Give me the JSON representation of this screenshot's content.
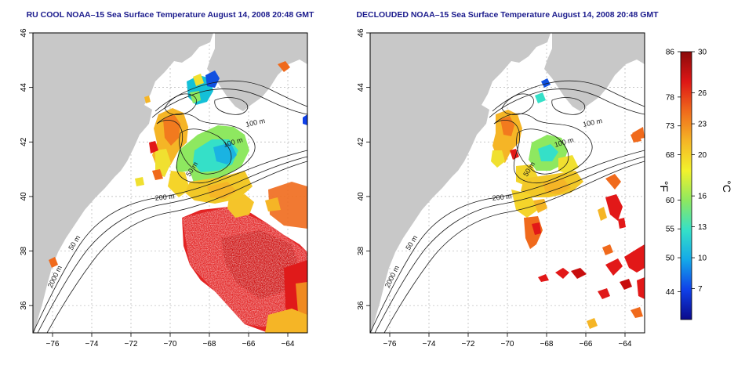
{
  "panels": [
    {
      "id": "left",
      "title": "RU COOL NOAA–15 Sea Surface Temperature August 14, 2008 20:48 GMT",
      "contour_labels": [
        "100 m",
        "100 m",
        "50 m",
        "200 m",
        "50 m",
        "2000 m"
      ]
    },
    {
      "id": "right",
      "title": "DECLOUDED NOAA–15 Sea Surface Temperature August 14, 2008 20:48 GMT",
      "contour_labels": [
        "100 m",
        "100 m",
        "50 m",
        "200 m",
        "50 m",
        "2000 m"
      ]
    }
  ],
  "axes": {
    "x_ticks": [
      "−76",
      "−74",
      "−72",
      "−70",
      "−68",
      "−66",
      "−64"
    ],
    "y_ticks": [
      "36",
      "38",
      "40",
      "42",
      "44",
      "46"
    ],
    "x_range": [
      -77,
      -63
    ],
    "y_range": [
      35,
      46
    ]
  },
  "colorbar": {
    "f_label": "°F",
    "c_label": "°C",
    "f_ticks": [
      {
        "label": "86",
        "c": 30
      },
      {
        "label": "78",
        "c": 25.6
      },
      {
        "label": "73",
        "c": 22.8
      },
      {
        "label": "68",
        "c": 20
      },
      {
        "label": "60",
        "c": 15.6
      },
      {
        "label": "55",
        "c": 12.8
      },
      {
        "label": "50",
        "c": 10
      },
      {
        "label": "44",
        "c": 6.7
      }
    ],
    "c_ticks": [
      {
        "label": "30",
        "c": 30
      },
      {
        "label": "26",
        "c": 26
      },
      {
        "label": "23",
        "c": 23
      },
      {
        "label": "20",
        "c": 20
      },
      {
        "label": "16",
        "c": 16
      },
      {
        "label": "13",
        "c": 13
      },
      {
        "label": "10",
        "c": 10
      },
      {
        "label": "7",
        "c": 7
      }
    ],
    "c_min": 4,
    "c_max": 30,
    "gradient": [
      "#0b0a8a",
      "#1040e8",
      "#14a8e8",
      "#35e0c8",
      "#8ee860",
      "#f2f22c",
      "#f5b526",
      "#f06a1c",
      "#dd1616",
      "#8a0a0a"
    ]
  },
  "colors": {
    "land": "#c8c8c8",
    "sea": "#ffffff",
    "title": "#1a1a8c",
    "contour": "#1a1a1a",
    "grid": "#b4b4b4"
  }
}
